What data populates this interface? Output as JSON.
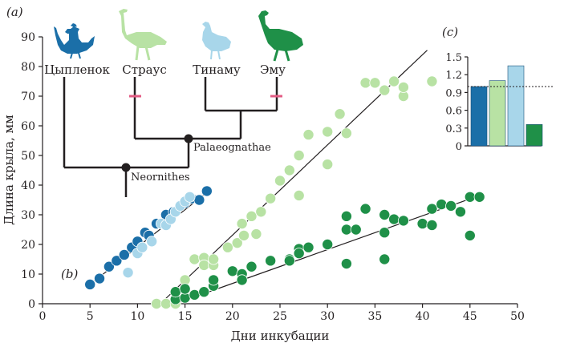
{
  "chart_data": [
    {
      "type": "scatter",
      "panel_label": "(b)",
      "xlabel": "Дни инкубации",
      "ylabel": "Длина крыла, мм",
      "xlim": [
        0,
        50
      ],
      "ylim": [
        0,
        90
      ],
      "xticks": [
        0,
        5,
        10,
        15,
        20,
        25,
        30,
        35,
        40,
        45,
        50
      ],
      "yticks": [
        0,
        10,
        20,
        30,
        40,
        50,
        60,
        70,
        80,
        90
      ],
      "grid": false,
      "series": [
        {
          "name": "Цыпленок",
          "color": "#1b6fa8",
          "points": [
            [
              5,
              6.5
            ],
            [
              6,
              8.5
            ],
            [
              7,
              12.5
            ],
            [
              7.8,
              14.5
            ],
            [
              8.6,
              16.5
            ],
            [
              9.4,
              19
            ],
            [
              10,
              21
            ],
            [
              10.8,
              24
            ],
            [
              11.2,
              23
            ],
            [
              12,
              27
            ],
            [
              13,
              30
            ],
            [
              13.8,
              31
            ],
            [
              15,
              34
            ],
            [
              15.7,
              35.5
            ],
            [
              16.5,
              35
            ],
            [
              17.3,
              38
            ]
          ],
          "fit": [
            [
              4.8,
              6
            ],
            [
              17.5,
              38
            ]
          ]
        },
        {
          "name": "Страус",
          "color": "#b8e2a4",
          "points": [
            [
              12,
              0
            ],
            [
              13,
              0
            ],
            [
              14,
              0
            ],
            [
              15,
              8
            ],
            [
              16,
              15
            ],
            [
              17,
              15.5
            ],
            [
              17,
              13
            ],
            [
              18,
              13
            ],
            [
              18,
              15
            ],
            [
              19.5,
              19
            ],
            [
              20.5,
              20.5
            ],
            [
              21,
              27
            ],
            [
              21.2,
              23
            ],
            [
              22,
              29.5
            ],
            [
              22.5,
              23.5
            ],
            [
              23,
              31
            ],
            [
              24,
              35.5
            ],
            [
              25,
              41.5
            ],
            [
              26,
              45
            ],
            [
              27,
              36.5
            ],
            [
              27,
              50
            ],
            [
              28,
              57
            ],
            [
              30,
              47
            ],
            [
              30,
              58
            ],
            [
              31.3,
              64
            ],
            [
              32,
              57.5
            ],
            [
              34,
              74.5
            ],
            [
              35,
              74.5
            ],
            [
              36,
              72
            ],
            [
              37,
              75
            ],
            [
              38,
              70
            ],
            [
              38,
              73
            ],
            [
              41,
              75
            ]
          ],
          "fit": [
            [
              12.4,
              0
            ],
            [
              40.5,
              85.5
            ]
          ]
        },
        {
          "name": "Тинаму",
          "color": "#a8d6ea",
          "points": [
            [
              9,
              10.5
            ],
            [
              10,
              17
            ],
            [
              10.5,
              19
            ],
            [
              11.5,
              21
            ],
            [
              12.5,
              27
            ],
            [
              13,
              26.5
            ],
            [
              13.5,
              28.5
            ],
            [
              14,
              31
            ],
            [
              14.5,
              33
            ],
            [
              15,
              34.5
            ],
            [
              15.5,
              36
            ]
          ],
          "fit": null
        },
        {
          "name": "Эму",
          "color": "#1f9048",
          "points": [
            [
              14,
              1.5
            ],
            [
              14,
              4
            ],
            [
              15,
              2
            ],
            [
              15,
              5
            ],
            [
              16,
              3
            ],
            [
              17,
              4
            ],
            [
              18,
              6
            ],
            [
              18,
              8
            ],
            [
              20,
              11
            ],
            [
              21,
              10
            ],
            [
              21,
              8
            ],
            [
              22,
              12.5
            ],
            [
              24,
              14.5
            ],
            [
              26,
              15
            ],
            [
              26,
              14.5
            ],
            [
              27,
              18.5
            ],
            [
              27,
              17
            ],
            [
              28,
              19
            ],
            [
              30,
              20
            ],
            [
              32,
              13.5
            ],
            [
              32,
              25
            ],
            [
              32,
              29.5
            ],
            [
              33,
              25
            ],
            [
              34,
              32
            ],
            [
              36,
              24
            ],
            [
              36,
              15
            ],
            [
              36,
              30
            ],
            [
              37,
              28.5
            ],
            [
              38,
              28
            ],
            [
              40,
              27
            ],
            [
              40,
              27
            ],
            [
              41,
              26.5
            ],
            [
              41,
              32
            ],
            [
              42,
              33.5
            ],
            [
              43,
              33
            ],
            [
              44,
              31
            ],
            [
              45,
              23
            ],
            [
              45,
              36
            ],
            [
              46,
              36
            ]
          ],
          "fit": [
            [
              14,
              0
            ],
            [
              46,
              36.5
            ]
          ]
        }
      ]
    },
    {
      "type": "bar",
      "panel_label": "(c)",
      "categories": [
        "Цыпленок",
        "Страус",
        "Тинаму",
        "Эму"
      ],
      "values": [
        1.0,
        1.1,
        1.35,
        0.36
      ],
      "colors": [
        "#1b6fa8",
        "#b8e2a4",
        "#a8d6ea",
        "#1f9048"
      ],
      "ylim": [
        0,
        1.5
      ],
      "yticks": [
        0,
        0.3,
        0.6,
        0.9,
        1.2,
        1.5
      ],
      "ytick_labels": [
        "0",
        "0.3",
        "0.6",
        "0.9",
        "1.2",
        "1.5"
      ],
      "reference_line": 1.0
    }
  ],
  "tree": {
    "panel_label": "(a)",
    "taxa": [
      "Цыпленок",
      "Страус",
      "Тинаму",
      "Эму"
    ],
    "clades": [
      "Palaeognathae",
      "Neornithes"
    ]
  },
  "icons": [
    "chicken-silhouette-icon",
    "ostrich-silhouette-icon",
    "tinamou-silhouette-icon",
    "emu-silhouette-icon"
  ]
}
